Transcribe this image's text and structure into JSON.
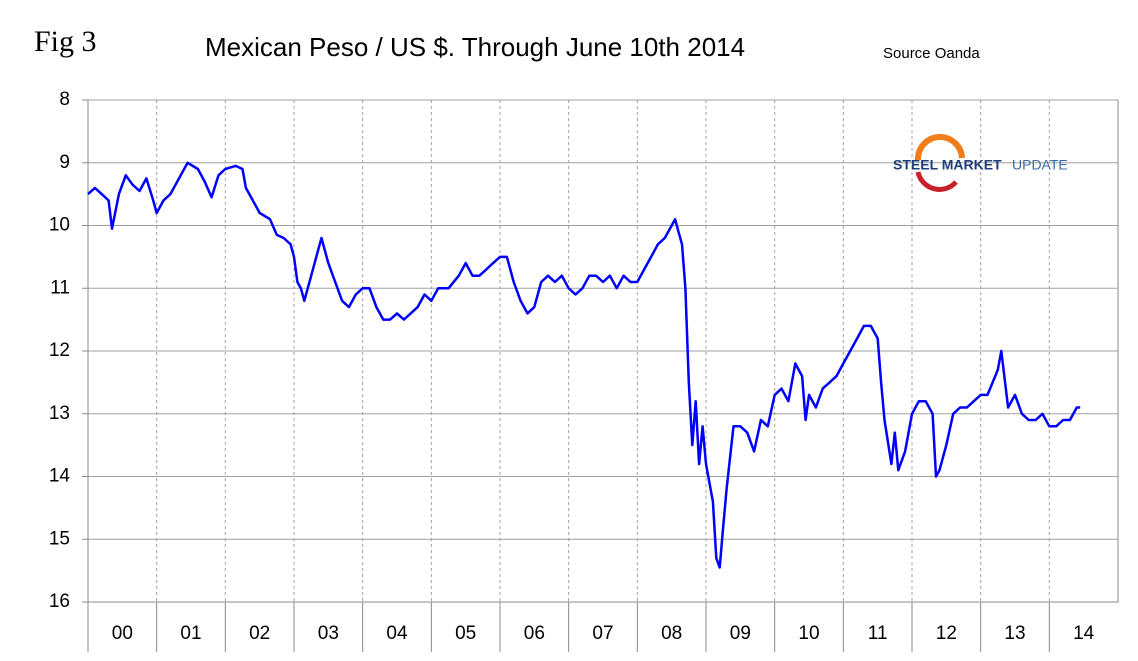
{
  "chart_data": {
    "type": "line",
    "figure_label": "Fig 3",
    "title": "Mexican Peso / US $. Through June 10th 2014",
    "source": "Source Oanda",
    "logo": {
      "bold": "STEEL MARKET",
      "light": "UPDATE"
    },
    "xlim": [
      0,
      15
    ],
    "xticks": [
      {
        "value": 0.5,
        "label": "00"
      },
      {
        "value": 1.5,
        "label": "01"
      },
      {
        "value": 2.5,
        "label": "02"
      },
      {
        "value": 3.5,
        "label": "03"
      },
      {
        "value": 4.5,
        "label": "04"
      },
      {
        "value": 5.5,
        "label": "05"
      },
      {
        "value": 6.5,
        "label": "06"
      },
      {
        "value": 7.5,
        "label": "07"
      },
      {
        "value": 8.5,
        "label": "08"
      },
      {
        "value": 9.5,
        "label": "09"
      },
      {
        "value": 10.5,
        "label": "10"
      },
      {
        "value": 11.5,
        "label": "11"
      },
      {
        "value": 12.5,
        "label": "12"
      },
      {
        "value": 13.5,
        "label": "13"
      },
      {
        "value": 14.5,
        "label": "14"
      }
    ],
    "ylim": [
      16,
      8
    ],
    "yticks": [
      8,
      9,
      10,
      11,
      12,
      13,
      14,
      15,
      16
    ],
    "grid": true,
    "x": [
      0,
      0.1,
      0.2,
      0.3,
      0.35,
      0.45,
      0.55,
      0.65,
      0.75,
      0.85,
      0.95,
      1.0,
      1.1,
      1.2,
      1.35,
      1.45,
      1.6,
      1.7,
      1.8,
      1.9,
      2.0,
      2.15,
      2.25,
      2.3,
      2.4,
      2.5,
      2.65,
      2.75,
      2.85,
      2.95,
      3.0,
      3.05,
      3.1,
      3.15,
      3.25,
      3.35,
      3.4,
      3.5,
      3.6,
      3.7,
      3.8,
      3.9,
      4.0,
      4.1,
      4.2,
      4.3,
      4.4,
      4.5,
      4.6,
      4.7,
      4.8,
      4.9,
      5.0,
      5.1,
      5.25,
      5.4,
      5.5,
      5.6,
      5.7,
      5.8,
      5.9,
      6.0,
      6.1,
      6.2,
      6.3,
      6.4,
      6.5,
      6.6,
      6.7,
      6.8,
      6.9,
      7.0,
      7.1,
      7.2,
      7.3,
      7.4,
      7.5,
      7.6,
      7.7,
      7.8,
      7.9,
      8.0,
      8.1,
      8.2,
      8.3,
      8.4,
      8.5,
      8.55,
      8.6,
      8.65,
      8.7,
      8.75,
      8.8,
      8.85,
      8.9,
      8.95,
      9.0,
      9.1,
      9.15,
      9.2,
      9.25,
      9.3,
      9.4,
      9.5,
      9.6,
      9.7,
      9.8,
      9.9,
      10.0,
      10.1,
      10.2,
      10.3,
      10.4,
      10.45,
      10.5,
      10.6,
      10.7,
      10.8,
      10.9,
      11.0,
      11.1,
      11.2,
      11.3,
      11.4,
      11.5,
      11.55,
      11.6,
      11.7,
      11.75,
      11.8,
      11.9,
      12.0,
      12.1,
      12.2,
      12.3,
      12.35,
      12.4,
      12.5,
      12.6,
      12.7,
      12.8,
      12.9,
      13.0,
      13.1,
      13.25,
      13.3,
      13.4,
      13.5,
      13.6,
      13.7,
      13.8,
      13.9,
      14.0,
      14.1,
      14.2,
      14.3,
      14.4,
      14.45
    ],
    "series": [
      {
        "color": "#0000ff",
        "values": [
          9.5,
          9.4,
          9.5,
          9.6,
          10.05,
          9.5,
          9.2,
          9.35,
          9.45,
          9.25,
          9.6,
          9.8,
          9.6,
          9.5,
          9.2,
          9.0,
          9.1,
          9.3,
          9.55,
          9.2,
          9.1,
          9.05,
          9.1,
          9.4,
          9.6,
          9.8,
          9.9,
          10.15,
          10.2,
          10.3,
          10.5,
          10.9,
          11.0,
          11.2,
          10.8,
          10.4,
          10.2,
          10.6,
          10.9,
          11.2,
          11.3,
          11.1,
          11.0,
          11.0,
          11.3,
          11.5,
          11.5,
          11.4,
          11.5,
          11.4,
          11.3,
          11.1,
          11.2,
          11.0,
          11.0,
          10.8,
          10.6,
          10.8,
          10.8,
          10.7,
          10.6,
          10.5,
          10.5,
          10.9,
          11.2,
          11.4,
          11.3,
          10.9,
          10.8,
          10.9,
          10.8,
          11.0,
          11.1,
          11.0,
          10.8,
          10.8,
          10.9,
          10.8,
          11.0,
          10.8,
          10.9,
          10.9,
          10.7,
          10.5,
          10.3,
          10.2,
          10.0,
          9.9,
          10.1,
          10.3,
          11.0,
          12.5,
          13.5,
          12.8,
          13.8,
          13.2,
          13.8,
          14.4,
          15.3,
          15.45,
          14.8,
          14.2,
          13.2,
          13.2,
          13.3,
          13.6,
          13.1,
          13.2,
          12.7,
          12.6,
          12.8,
          12.2,
          12.4,
          13.1,
          12.7,
          12.9,
          12.6,
          12.5,
          12.4,
          12.2,
          12.0,
          11.8,
          11.6,
          11.6,
          11.8,
          12.5,
          13.1,
          13.8,
          13.3,
          13.9,
          13.6,
          13.0,
          12.8,
          12.8,
          13.0,
          14.0,
          13.9,
          13.5,
          13.0,
          12.9,
          12.9,
          12.8,
          12.7,
          12.7,
          12.3,
          12.0,
          12.9,
          12.7,
          13.0,
          13.1,
          13.1,
          13.0,
          13.2,
          13.2,
          13.1,
          13.1,
          12.9,
          12.9
        ]
      }
    ]
  }
}
